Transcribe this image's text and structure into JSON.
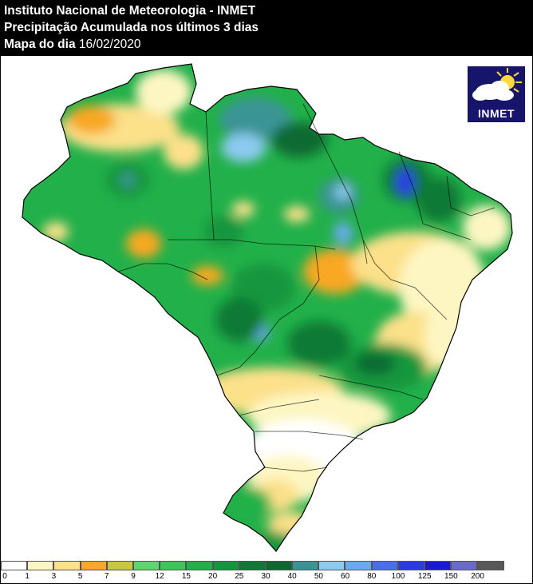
{
  "header": {
    "line1": "Instituto Nacional de Meteorologia - INMET",
    "line2": "Precipitação Acumulada nos últimos 3 dias",
    "line3_label": "Mapa do dia",
    "line3_date": "16/02/2020"
  },
  "logo": {
    "text": "INMET",
    "icon": "sun-cloud-icon"
  },
  "legend": {
    "unit": "",
    "ticks": [
      "0",
      "1",
      "3",
      "5",
      "7",
      "9",
      "12",
      "15",
      "20",
      "25",
      "30",
      "40",
      "50",
      "60",
      "80",
      "100",
      "125",
      "150",
      "200"
    ],
    "colors": [
      "#ffffff",
      "#fdf6c2",
      "#fce08a",
      "#f8a824",
      "#c8c83c",
      "#5ed66e",
      "#3cc65a",
      "#22b04a",
      "#12963e",
      "#0e7a36",
      "#0a6a30",
      "#3a9494",
      "#8ccaf0",
      "#6aaaf0",
      "#4a6ef0",
      "#2a3ae6",
      "#1a1ad0",
      "#6a6ac8",
      "#585858"
    ]
  },
  "map": {
    "region": "Brasil",
    "background_color": "#ffffff",
    "dominant_colors": {
      "north": "#22b04a",
      "northeast": "#fdf6c2",
      "south": "#ffffff",
      "wet_core": "#0a6a30",
      "max": "#2a3ae6"
    }
  }
}
